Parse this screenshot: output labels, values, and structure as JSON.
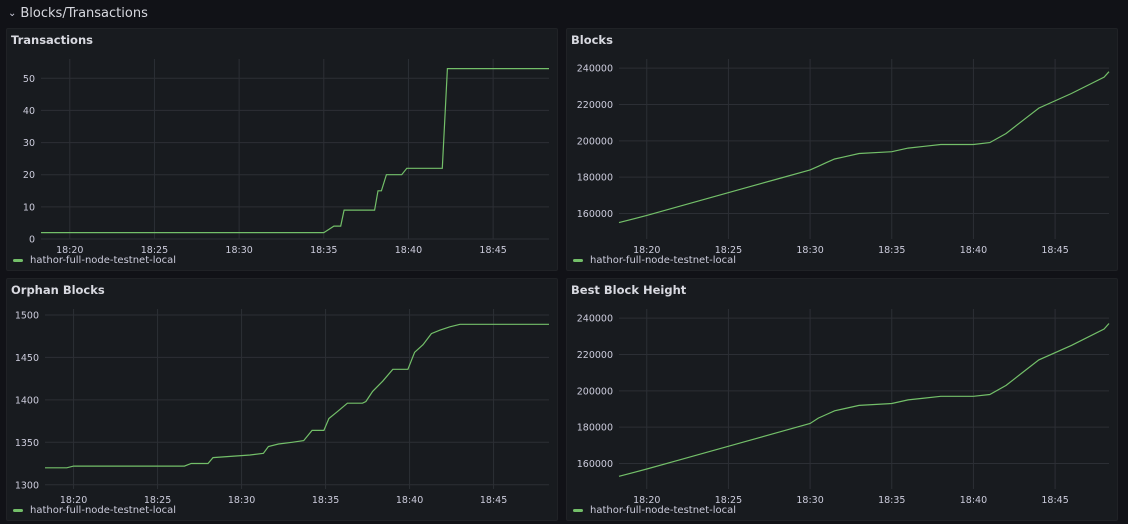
{
  "row": {
    "chevron": "chevron-down-icon",
    "title": "Blocks/Transactions"
  },
  "colors": {
    "background": "#111217",
    "panel": "#181b1f",
    "series": "#73bf69",
    "grid": "#2c2f35",
    "text": "#ccccdc"
  },
  "panels": [
    {
      "title": "Transactions",
      "legend": "hathor-full-node-testnet-local"
    },
    {
      "title": "Blocks",
      "legend": "hathor-full-node-testnet-local"
    },
    {
      "title": "Orphan Blocks",
      "legend": "hathor-full-node-testnet-local"
    },
    {
      "title": "Best Block Height",
      "legend": "hathor-full-node-testnet-local"
    }
  ],
  "chart_data": [
    {
      "type": "line",
      "title": "Transactions",
      "xlabel": "",
      "ylabel": "",
      "x_ticks": [
        "18:20",
        "18:25",
        "18:30",
        "18:35",
        "18:40",
        "18:45"
      ],
      "y_ticks": [
        0,
        10,
        20,
        30,
        40,
        50
      ],
      "xlim": [
        18.3,
        48.3
      ],
      "ylim": [
        0,
        56
      ],
      "grid": true,
      "legend_position": "bottom-left",
      "series": [
        {
          "name": "hathor-full-node-testnet-local",
          "x": [
            18.3,
            35.0,
            35.3,
            35.6,
            36.0,
            36.2,
            38.0,
            38.2,
            38.4,
            38.7,
            39.6,
            39.9,
            42.0,
            42.3,
            48.3
          ],
          "y": [
            2,
            2,
            3,
            4,
            4,
            9,
            9,
            15,
            15,
            20,
            20,
            22,
            22,
            53,
            53
          ]
        }
      ]
    },
    {
      "type": "line",
      "title": "Blocks",
      "xlabel": "",
      "ylabel": "",
      "x_ticks": [
        "18:20",
        "18:25",
        "18:30",
        "18:35",
        "18:40",
        "18:45"
      ],
      "y_ticks": [
        160000,
        180000,
        200000,
        220000,
        240000
      ],
      "xlim": [
        18.3,
        48.3
      ],
      "ylim": [
        146000,
        245000
      ],
      "grid": true,
      "legend_position": "bottom-left",
      "series": [
        {
          "name": "hathor-full-node-testnet-local",
          "x": [
            18.3,
            20,
            22,
            24,
            26,
            28,
            30,
            30.5,
            31,
            31.5,
            32,
            33,
            35,
            36,
            37,
            38,
            40,
            41,
            42,
            43,
            44,
            46,
            48,
            48.3
          ],
          "y": [
            155000,
            159000,
            164000,
            169000,
            174000,
            179000,
            184000,
            186000,
            188000,
            190000,
            191000,
            193000,
            194000,
            196000,
            197000,
            198000,
            198000,
            199000,
            204000,
            211000,
            218000,
            226000,
            235000,
            238000
          ]
        }
      ]
    },
    {
      "type": "line",
      "title": "Orphan Blocks",
      "xlabel": "",
      "ylabel": "",
      "x_ticks": [
        "18:20",
        "18:25",
        "18:30",
        "18:35",
        "18:40",
        "18:45"
      ],
      "y_ticks": [
        1300,
        1350,
        1400,
        1450,
        1500
      ],
      "xlim": [
        18.3,
        48.3
      ],
      "ylim": [
        1295,
        1507
      ],
      "grid": true,
      "legend_position": "bottom-left",
      "series": [
        {
          "name": "hathor-full-node-testnet-local",
          "x": [
            18.3,
            19.6,
            20.0,
            26.6,
            27.0,
            28.0,
            28.3,
            30.5,
            31.3,
            31.6,
            32.2,
            33.0,
            33.7,
            34.2,
            34.9,
            35.2,
            35.7,
            36.3,
            37.2,
            37.4,
            37.8,
            38.4,
            39.0,
            39.9,
            40.3,
            40.8,
            41.3,
            41.8,
            42.4,
            43.0,
            48.3
          ],
          "y": [
            1320,
            1320,
            1322,
            1322,
            1325,
            1325,
            1332,
            1335,
            1337,
            1345,
            1348,
            1350,
            1352,
            1364,
            1364,
            1378,
            1386,
            1396,
            1396,
            1398,
            1410,
            1422,
            1436,
            1436,
            1456,
            1465,
            1478,
            1482,
            1486,
            1489,
            1489
          ]
        }
      ]
    },
    {
      "type": "line",
      "title": "Best Block Height",
      "xlabel": "",
      "ylabel": "",
      "x_ticks": [
        "18:20",
        "18:25",
        "18:30",
        "18:35",
        "18:40",
        "18:45"
      ],
      "y_ticks": [
        160000,
        180000,
        200000,
        220000,
        240000
      ],
      "xlim": [
        18.3,
        48.3
      ],
      "ylim": [
        146000,
        245000
      ],
      "grid": true,
      "legend_position": "bottom-left",
      "series": [
        {
          "name": "hathor-full-node-testnet-local",
          "x": [
            18.3,
            20,
            22,
            24,
            26,
            28,
            30,
            30.5,
            31,
            31.5,
            32,
            33,
            35,
            36,
            37,
            38,
            40,
            41,
            42,
            43,
            44,
            46,
            48,
            48.3
          ],
          "y": [
            153000,
            157000,
            162000,
            167000,
            172000,
            177000,
            182000,
            185000,
            187000,
            189000,
            190000,
            192000,
            193000,
            195000,
            196000,
            197000,
            197000,
            198000,
            203000,
            210000,
            217000,
            225000,
            234000,
            237000
          ]
        }
      ]
    }
  ]
}
